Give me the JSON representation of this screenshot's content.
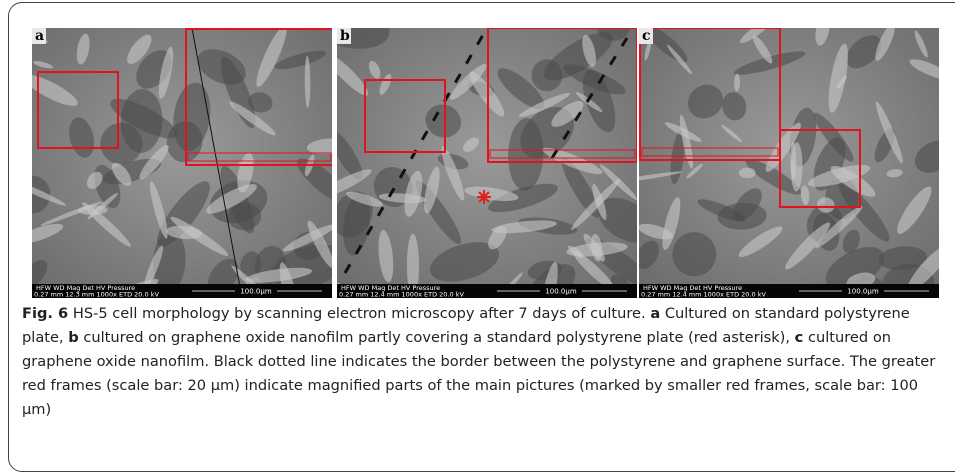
{
  "panels": [
    {
      "label": "a",
      "info_header": "HFW    WD    Mag   Det   HV   Pressure",
      "info_values": "0.27 mm 12.3 mm 1000x ETD 20.0 kV",
      "scale": "100.0µm"
    },
    {
      "label": "b",
      "info_header": "HFW    WD    Mag   Det   HV   Pressure",
      "info_values": "0.27 mm 12.4 mm 1000x ETD 20.0 kV",
      "scale": "100.0µm"
    },
    {
      "label": "c",
      "info_header": "HFW    WD    Mag   Det   HV   Pressure",
      "info_values": "0.27 mm 12.4 mm 1000x ETD 20.0 kV",
      "scale": "100.0µm"
    }
  ],
  "caption": {
    "label": "Fig. 6",
    "text": "HS-5 cell morphology by scanning electron microscopy after 7 days of culture.",
    "parts": [
      {
        "label": "a",
        "text": "Cultured on standard polystyrene plate,"
      },
      {
        "label": "b",
        "text": "cultured on graphene oxide nanofilm partly covering a standard polystyrene plate (red asterisk),"
      },
      {
        "label": "c",
        "text": "cultured on graphene oxide nanofilm."
      }
    ],
    "note": "Black dotted line indicates the border between the polystyrene and graphene surface. The greater red frames (scale bar: 20 µm) indicate magnified parts of the main pictures (marked by smaller red frames, scale bar: 100 µm)"
  }
}
